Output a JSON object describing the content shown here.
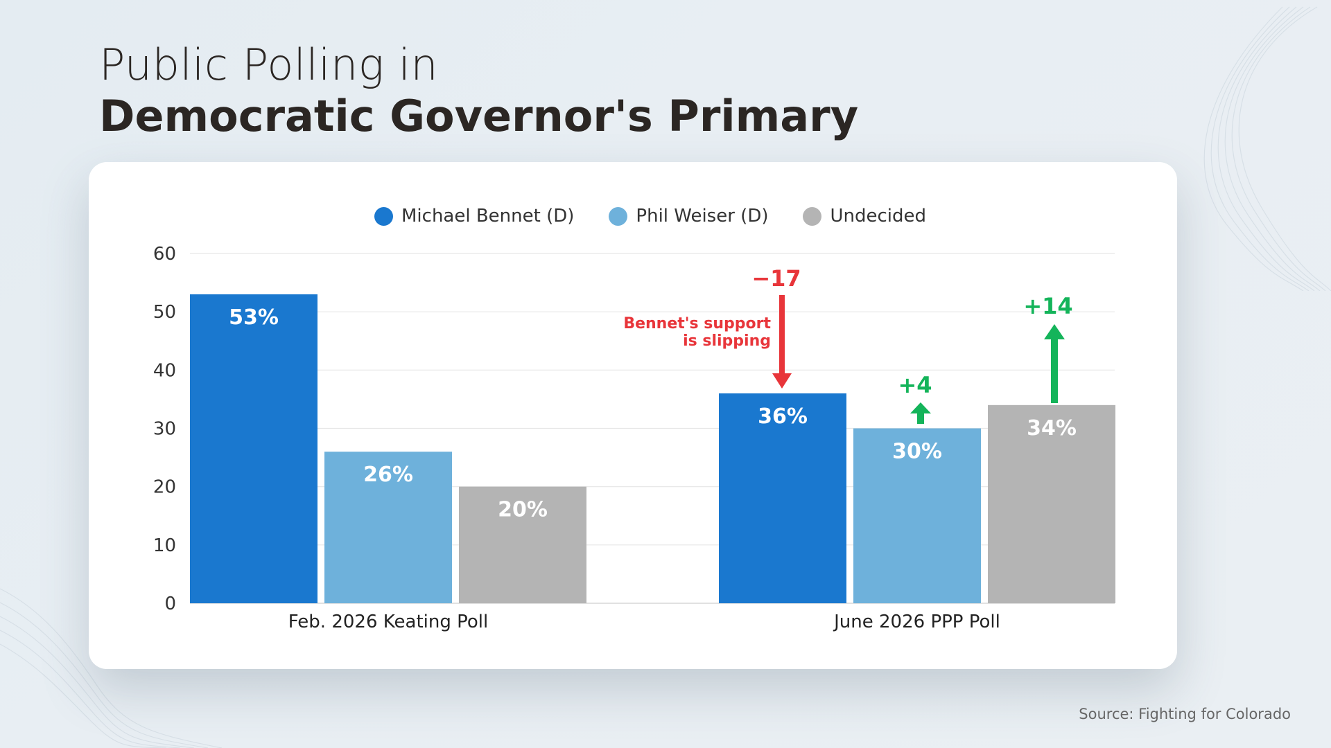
{
  "title": {
    "line1": "Public Polling in",
    "line2": "Democratic Governor's Primary"
  },
  "source": "Source: Fighting for Colorado",
  "colors": {
    "bennet": "#1a78cf",
    "weiser": "#6eb1db",
    "undecided": "#b4b4b4",
    "decline": "#e8353a",
    "increase": "#14b45a"
  },
  "chart_data": {
    "type": "bar",
    "categories": [
      "Feb. 2026 Keating Poll",
      "June 2026 PPP Poll"
    ],
    "series": [
      {
        "name": "Michael Bennet (D)",
        "values": [
          53,
          36
        ],
        "labels": [
          "53%",
          "36%"
        ],
        "color": "#1a78cf"
      },
      {
        "name": "Phil Weiser (D)",
        "values": [
          26,
          30
        ],
        "labels": [
          "26%",
          "30%"
        ],
        "color": "#6eb1db"
      },
      {
        "name": "Undecided",
        "values": [
          20,
          34
        ],
        "labels": [
          "20%",
          "34%"
        ],
        "color": "#b4b4b4"
      }
    ],
    "ylim": [
      0,
      60
    ],
    "yticks": [
      0,
      10,
      20,
      30,
      40,
      50,
      60
    ],
    "grid": true,
    "legend": "top-center",
    "annotations": [
      {
        "series": "Michael Bennet (D)",
        "category": "June 2026 PPP Poll",
        "change": "−17",
        "direction": "down",
        "note_line1": "Bennet's support",
        "note_line2": "is slipping"
      },
      {
        "series": "Phil Weiser (D)",
        "category": "June 2026 PPP Poll",
        "change": "+4",
        "direction": "up"
      },
      {
        "series": "Undecided",
        "category": "June 2026 PPP Poll",
        "change": "+14",
        "direction": "up"
      }
    ]
  }
}
